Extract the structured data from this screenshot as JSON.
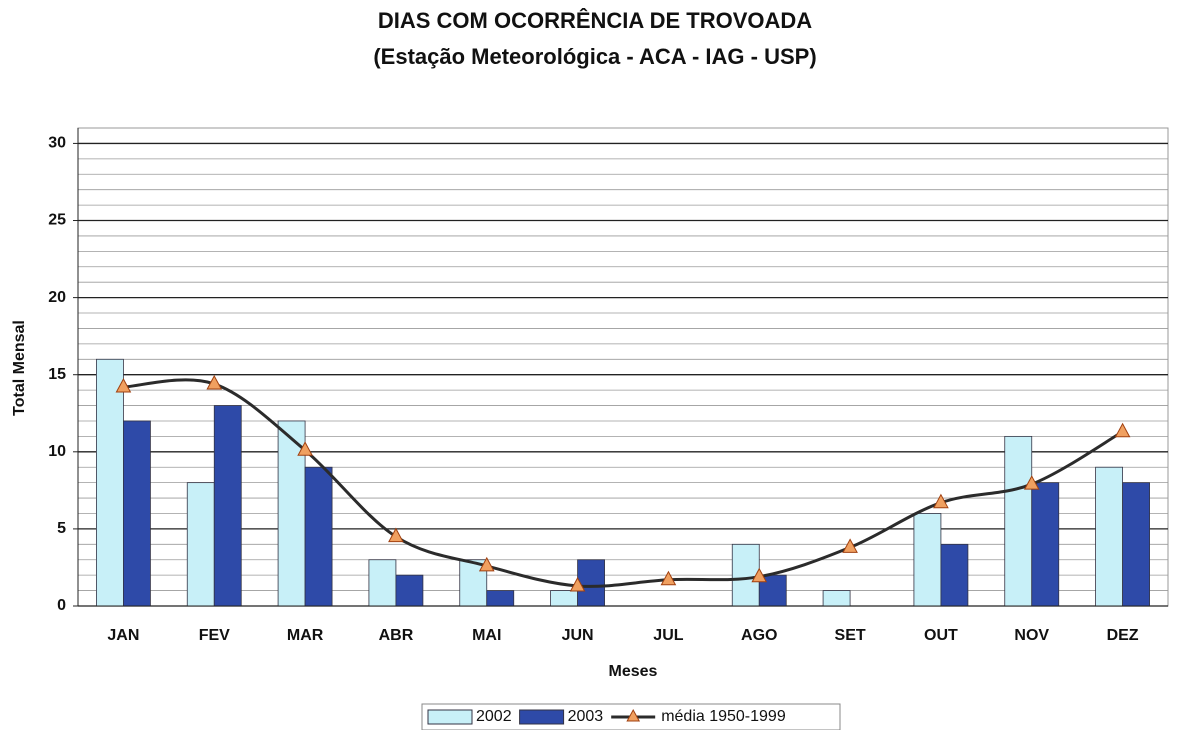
{
  "chart_data": {
    "type": "bar_line",
    "title": "DIAS COM OCORRÊNCIA DE TROVOADA",
    "subtitle": "(Estação Meteorológica - ACA - IAG - USP)",
    "x_label": "Meses",
    "y_label": "Total Mensal",
    "categories": [
      "JAN",
      "FEV",
      "MAR",
      "ABR",
      "MAI",
      "JUN",
      "JUL",
      "AGO",
      "SET",
      "OUT",
      "NOV",
      "DEZ"
    ],
    "series": [
      {
        "name": "2002",
        "type": "bar",
        "color": "#c8f0f8",
        "values": [
          16,
          8,
          12,
          3,
          3,
          1,
          0,
          4,
          1,
          6,
          11,
          9
        ]
      },
      {
        "name": "2003",
        "type": "bar",
        "color": "#2e4aa8",
        "values": [
          12,
          13,
          9,
          2,
          1,
          3,
          0,
          2,
          0,
          4,
          8,
          8
        ]
      },
      {
        "name": "média 1950-1999",
        "type": "line",
        "color": "#2b2b2b",
        "marker_color": "#f0a060",
        "values": [
          14.2,
          14.4,
          10.1,
          4.5,
          2.6,
          1.3,
          1.7,
          1.9,
          3.8,
          6.7,
          7.9,
          11.3
        ]
      }
    ],
    "ylim": [
      0,
      31
    ],
    "yticks": [
      0,
      5,
      10,
      15,
      20,
      25,
      30
    ],
    "grid": true,
    "legend": "bottom"
  }
}
